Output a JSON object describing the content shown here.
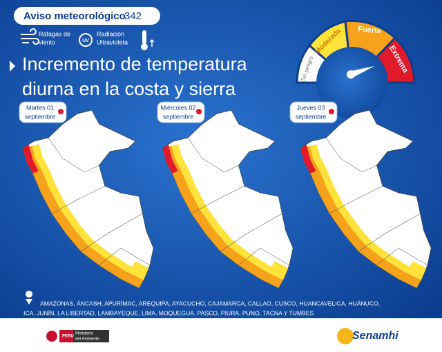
{
  "header": {
    "title": "Aviso meteorológico",
    "number": "342"
  },
  "icons": [
    {
      "lines": [
        "Ráfagas de",
        "viento"
      ]
    },
    {
      "icon_text": "UV",
      "lines": [
        "Radiación",
        "Ultravioleta"
      ]
    }
  ],
  "gauge": {
    "levels": [
      "Sin peligro",
      "Moderada",
      "Fuerte",
      "Extrema"
    ]
  },
  "headline": [
    "Incremento de temperatura",
    "diurna en la costa y sierra"
  ],
  "days": [
    {
      "weekday": "Martes 01",
      "month": "septiembre"
    },
    {
      "weekday": "Miércoles 02",
      "month": "septiembre"
    },
    {
      "weekday": "Jueves 03",
      "month": "septiembre"
    }
  ],
  "regions": [
    "AMAZONAS, ÁNCASH, APURÍMAC, AREQUIPA, AYACUCHO, CAJAMARCA, CALLAO, CUSCO, HUANCAVELICA, HUÁNUCO,",
    "ICA, JUNÍN, LA LIBERTAD, LAMBAYEQUE, LIMA, MOQUEGUA, PASCO, PIURA, PUNO, TACNA Y TUMBES"
  ],
  "footer": {
    "country": "PERÚ",
    "ministry": [
      "Ministerio",
      "del Ambiente"
    ],
    "agency": "Senamhi"
  }
}
